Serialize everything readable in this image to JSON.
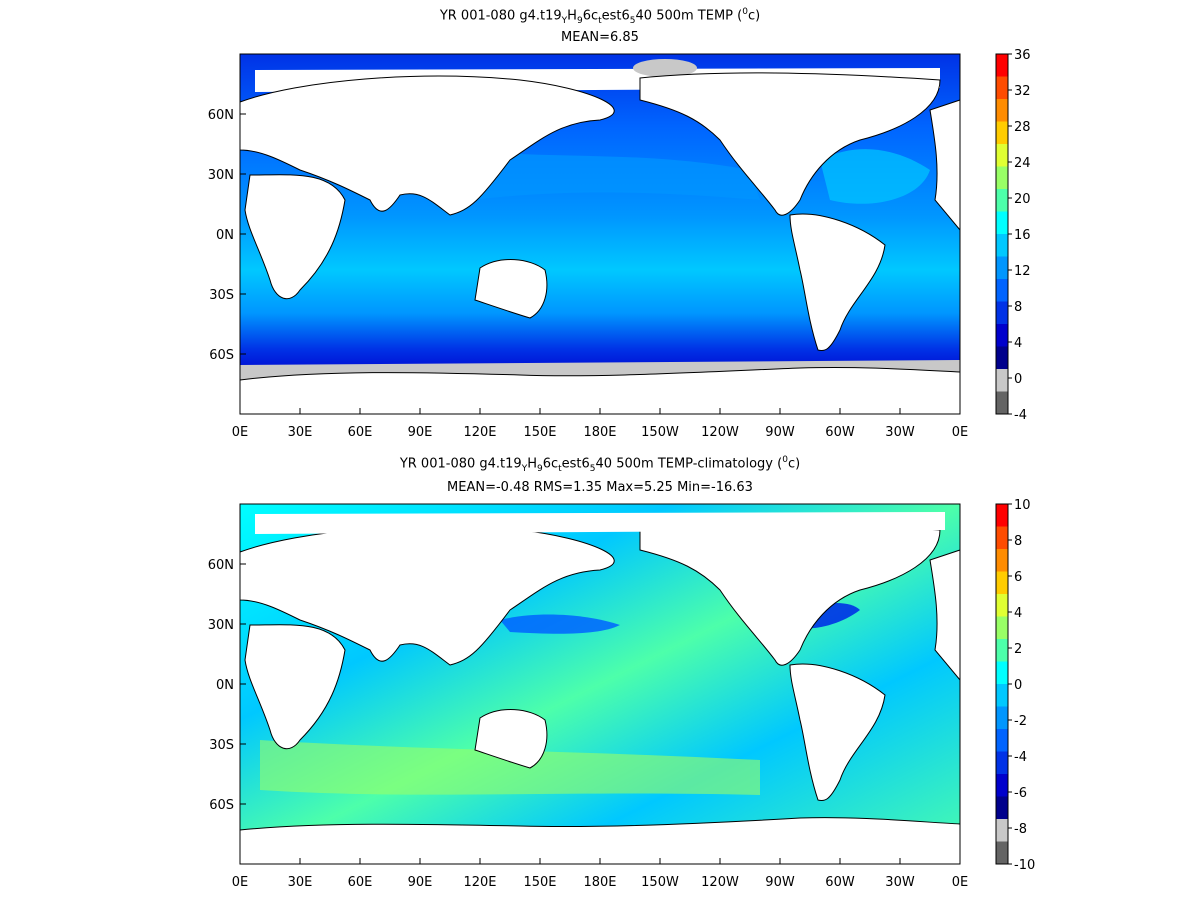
{
  "chart_data": [
    {
      "type": "heatmap",
      "title": {
        "pre": "YR 001-080 g4.t19",
        "sub1": "Y",
        "mid1": "H",
        "sub2": "9",
        "mid2": "6c",
        "sub3": "t",
        "mid3": "est6",
        "sub4": "5",
        "mid4": "40 500m TEMP (",
        "sup": "0",
        "post": "c)"
      },
      "subtitle": "MEAN=6.85",
      "xticks": [
        "0E",
        "30E",
        "60E",
        "90E",
        "120E",
        "150E",
        "180E",
        "150W",
        "120W",
        "90W",
        "60W",
        "30W",
        "0E"
      ],
      "yticks": [
        "60N",
        "30N",
        "0N",
        "30S",
        "60S"
      ],
      "colorbar_ticks": [
        "36",
        "32",
        "28",
        "24",
        "20",
        "16",
        "12",
        "8",
        "4",
        "0",
        "-4"
      ],
      "colorbar_colors": [
        "#ff0000",
        "#ff4c00",
        "#ff8c00",
        "#ffcc00",
        "#e0ff33",
        "#99ff66",
        "#4dffaa",
        "#00ffff",
        "#00c8ff",
        "#0096ff",
        "#0064ff",
        "#0032e6",
        "#0000cc",
        "#00008c",
        "#c8c8c8",
        "#646464"
      ],
      "value_range": [
        -4,
        36
      ]
    },
    {
      "type": "heatmap",
      "title": {
        "pre": "YR 001-080 g4.t19",
        "sub1": "Y",
        "mid1": "H",
        "sub2": "9",
        "mid2": "6c",
        "sub3": "t",
        "mid3": "est6",
        "sub4": "5",
        "mid4": "40 500m TEMP-climatology (",
        "sup": "0",
        "post": "c)"
      },
      "subtitle": "MEAN=-0.48   RMS=1.35   Max=5.25   Min=-16.63",
      "xticks": [
        "0E",
        "30E",
        "60E",
        "90E",
        "120E",
        "150E",
        "180E",
        "150W",
        "120W",
        "90W",
        "60W",
        "30W",
        "0E"
      ],
      "yticks": [
        "60N",
        "30N",
        "0N",
        "30S",
        "60S"
      ],
      "colorbar_ticks": [
        "10",
        "8",
        "6",
        "4",
        "2",
        "0",
        "-2",
        "-4",
        "-6",
        "-8",
        "-10"
      ],
      "colorbar_colors": [
        "#ff0000",
        "#ff4c00",
        "#ff8c00",
        "#ffcc00",
        "#e0ff33",
        "#99ff66",
        "#4dffaa",
        "#00ffff",
        "#00c8ff",
        "#0096ff",
        "#0064ff",
        "#0032e6",
        "#0000cc",
        "#00008c",
        "#c8c8c8",
        "#646464"
      ],
      "value_range": [
        -10,
        10
      ]
    }
  ]
}
